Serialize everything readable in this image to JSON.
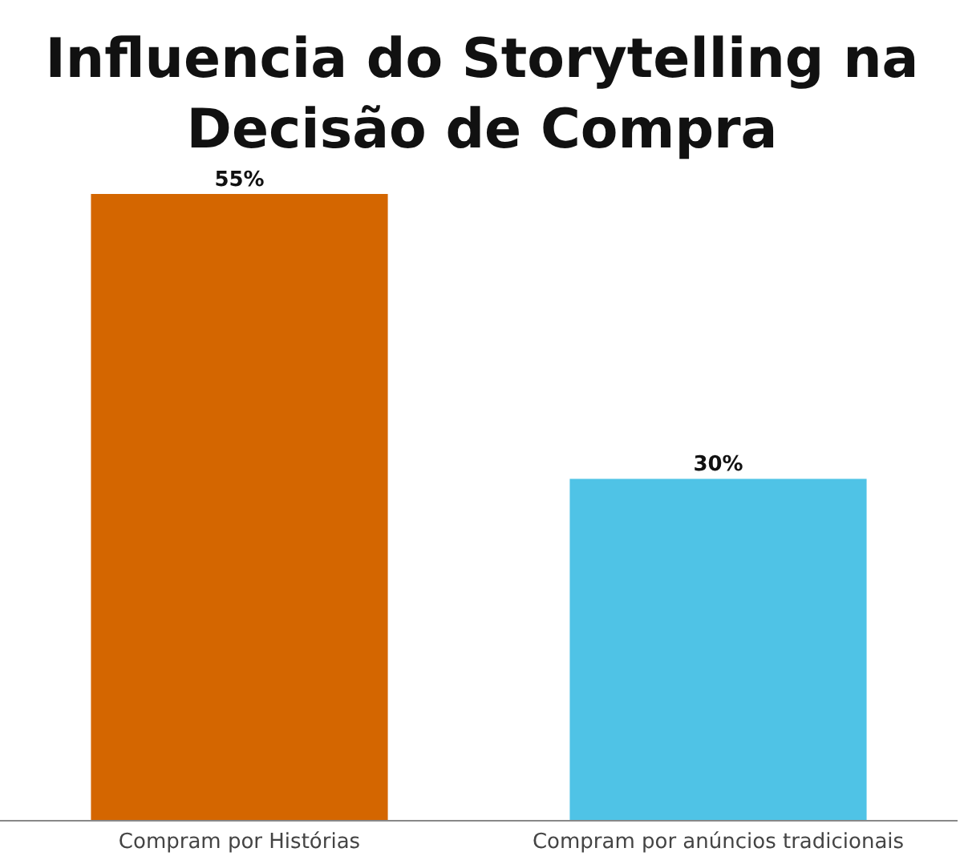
{
  "chart_data": {
    "type": "bar",
    "title": "Influencia do Storytelling na Decisão de Compra",
    "categories": [
      "Compram por Histórias",
      "Compram por anúncios tradicionais"
    ],
    "values": [
      55,
      30
    ],
    "colors": [
      "#d46600",
      "#4fc3e6"
    ],
    "value_labels": [
      "55%",
      "30%"
    ],
    "ylim": [
      0,
      55
    ]
  }
}
